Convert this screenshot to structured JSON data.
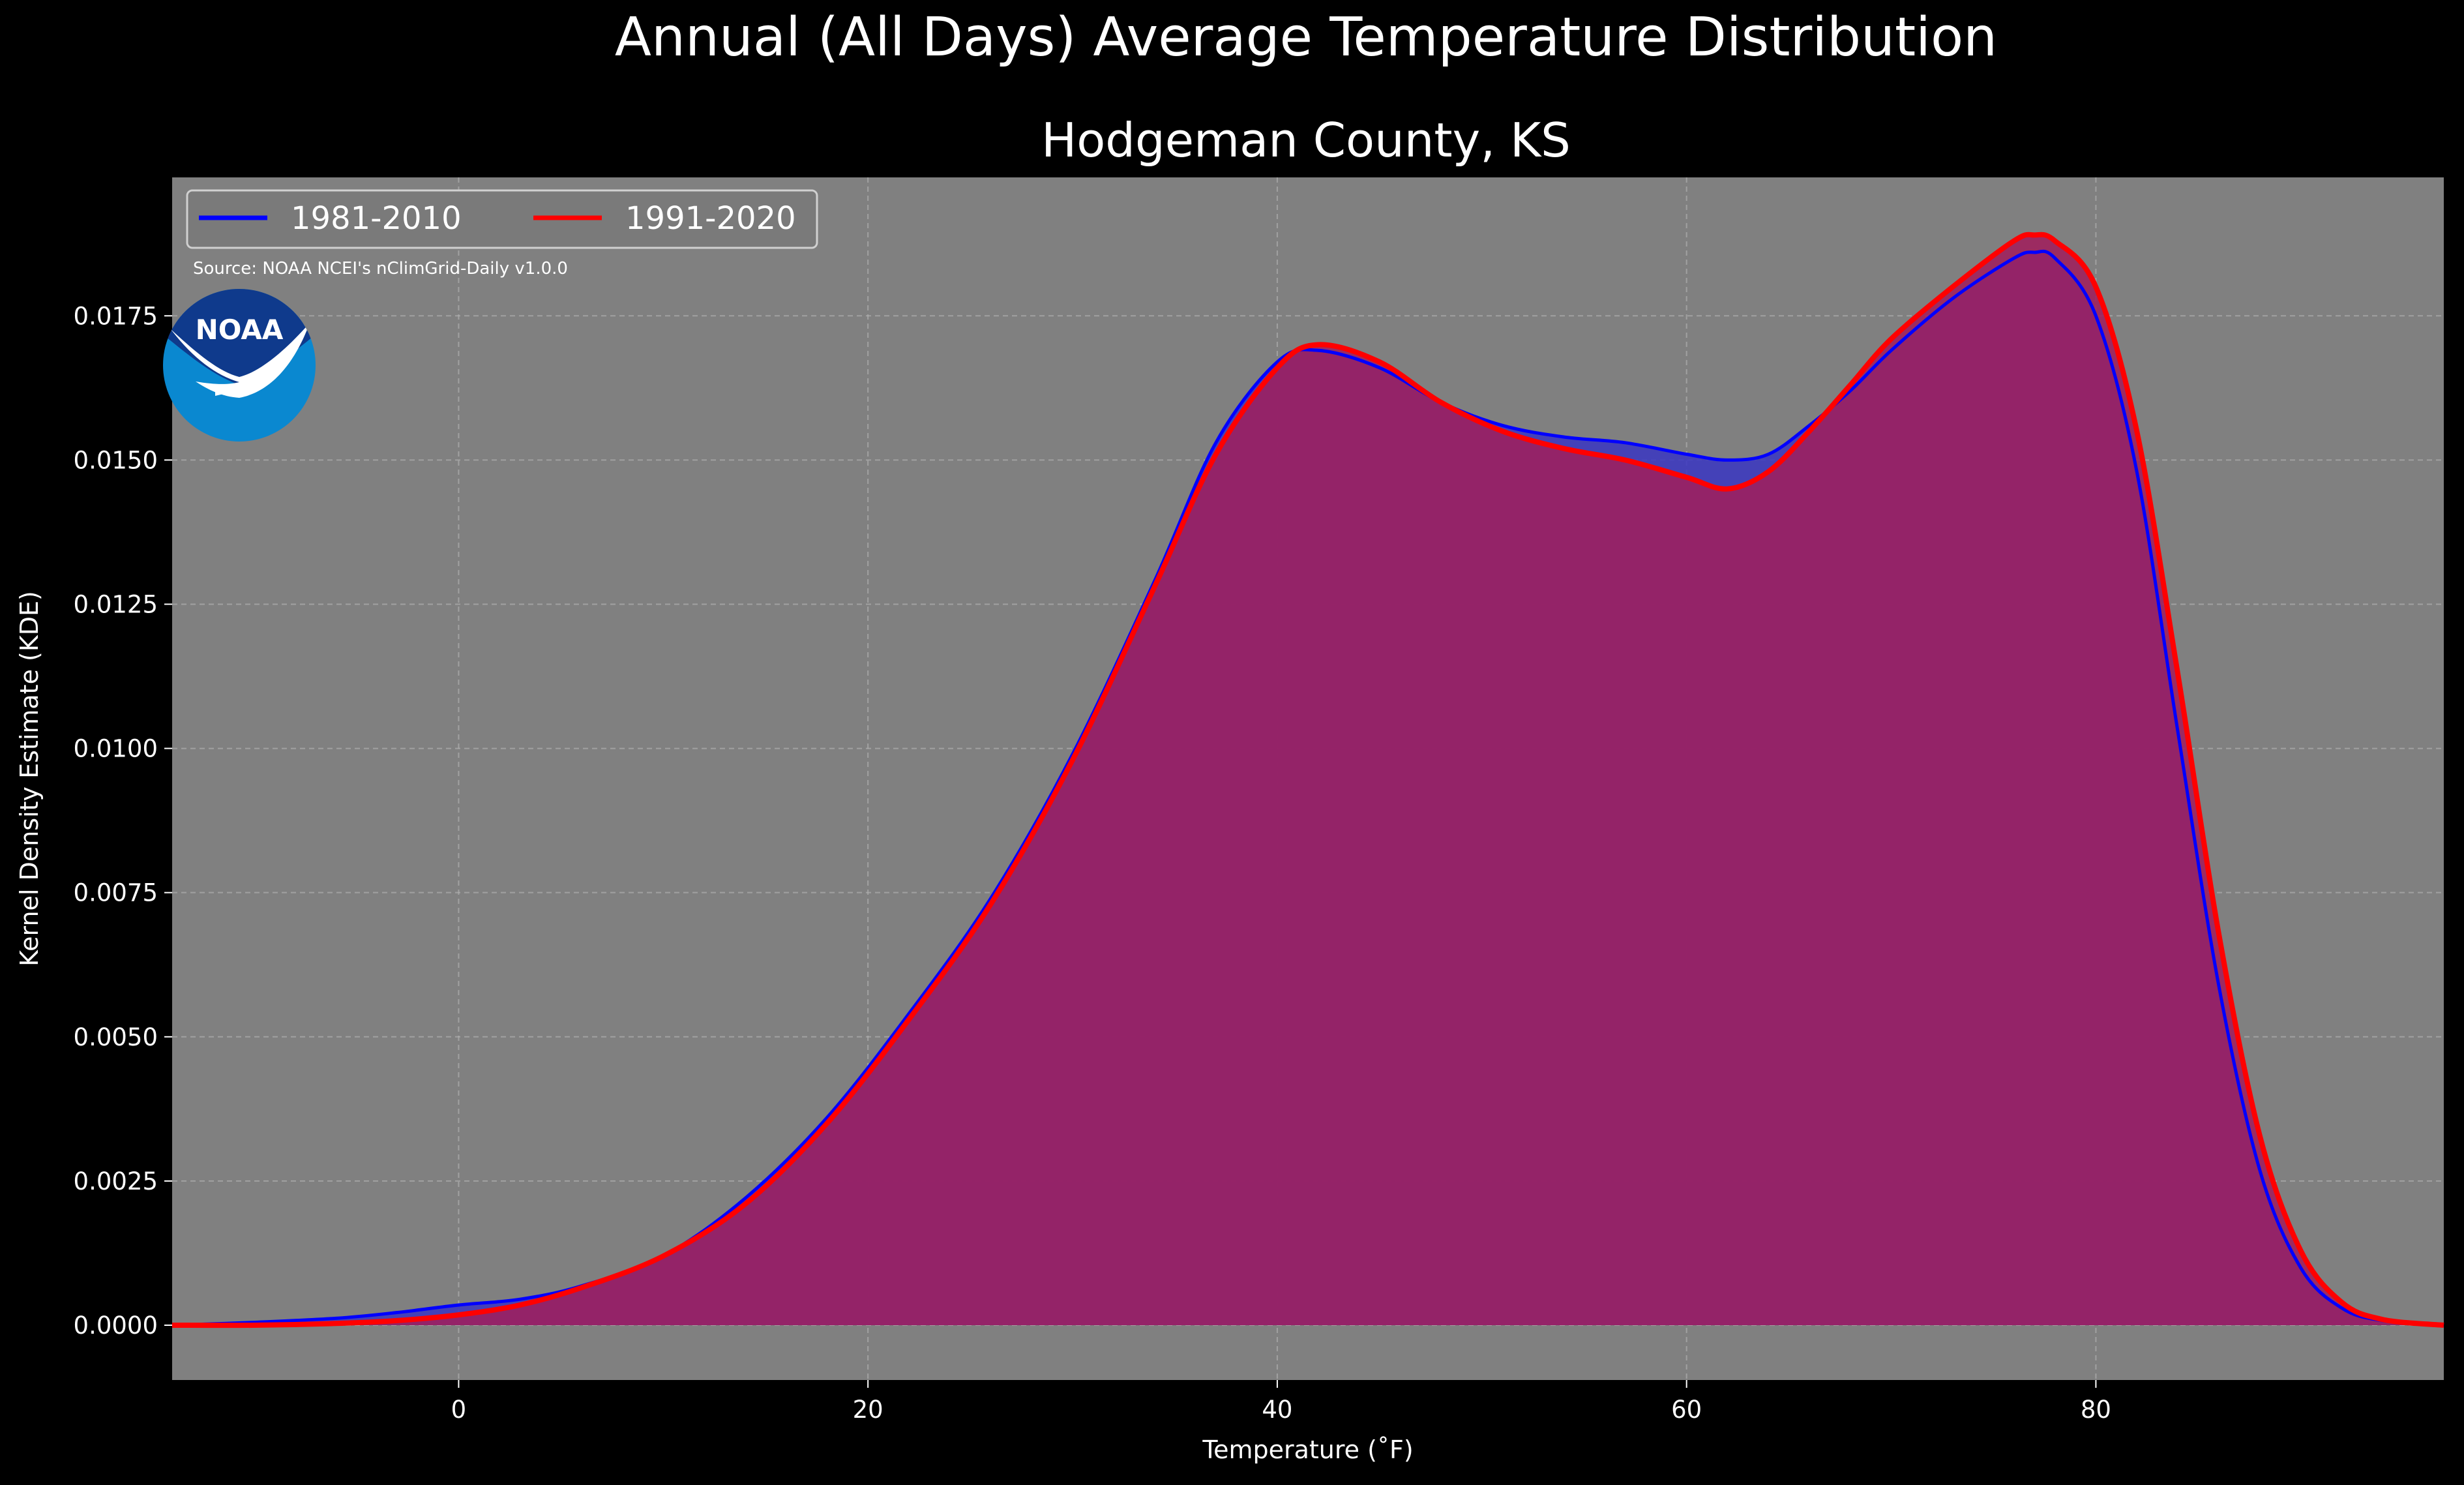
{
  "chart_data": {
    "type": "area",
    "title": "Annual (All Days) Average Temperature Distribution",
    "subtitle": "Hodgeman County, KS",
    "xlabel": "Temperature (˚F)",
    "ylabel": "Kernel Density Estimate (KDE)",
    "xlim": [
      -14,
      97
    ],
    "ylim": [
      -0.00095,
      0.0199
    ],
    "xticks": [
      0,
      20,
      40,
      60,
      80
    ],
    "yticks": [
      0.0,
      0.0025,
      0.005,
      0.0075,
      0.01,
      0.0125,
      0.015,
      0.0175
    ],
    "ytick_labels": [
      "0.0000",
      "0.0025",
      "0.0050",
      "0.0075",
      "0.0100",
      "0.0125",
      "0.0150",
      "0.0175"
    ],
    "grid": true,
    "legend_position": "top-left",
    "source_note": "Source: NOAA NCEI's nClimGrid-Daily v1.0.0",
    "logo_text": "NOAA",
    "colors": {
      "background": "#000000",
      "plot_background": "#808080",
      "grid": "#b0b0b0",
      "series_1": "#0000ff",
      "series_2": "#ff0000",
      "fill_1": "#3a36c2",
      "fill_2": "#9f1f5c",
      "logo_outer": "#0a88d0",
      "logo_inner": "#0f3a8c"
    },
    "series": [
      {
        "name": "1981-2010",
        "color": "#0000ff",
        "x": [
          -14,
          -10,
          -6,
          -3,
          0,
          3,
          6,
          10,
          14,
          18,
          22,
          26,
          30,
          34,
          37,
          40,
          42,
          45,
          48,
          51,
          54,
          57,
          60,
          62,
          64,
          66,
          68,
          70,
          73,
          76,
          77,
          78,
          80,
          82,
          84,
          86,
          88,
          90,
          92,
          94,
          97
        ],
        "y": [
          0.0,
          5e-05,
          0.00012,
          0.00022,
          0.00035,
          0.00045,
          0.00068,
          0.0012,
          0.0022,
          0.0036,
          0.0054,
          0.0074,
          0.0099,
          0.0129,
          0.0153,
          0.0167,
          0.0169,
          0.0166,
          0.016,
          0.0156,
          0.0154,
          0.0153,
          0.0151,
          0.015,
          0.0151,
          0.0156,
          0.0162,
          0.0169,
          0.0178,
          0.0185,
          0.0186,
          0.0185,
          0.0175,
          0.0148,
          0.0103,
          0.0059,
          0.0027,
          0.001,
          0.0003,
          8e-05,
          0.0
        ]
      },
      {
        "name": "1991-2020",
        "color": "#ff0000",
        "x": [
          -14,
          -10,
          -6,
          -3,
          0,
          3,
          6,
          10,
          14,
          18,
          22,
          26,
          30,
          34,
          37,
          40,
          42,
          45,
          48,
          51,
          54,
          57,
          60,
          62,
          64,
          66,
          68,
          70,
          73,
          76,
          77,
          78,
          80,
          82,
          84,
          86,
          88,
          90,
          92,
          94,
          97
        ],
        "y": [
          0.0,
          0.0,
          3e-05,
          8e-05,
          0.00018,
          0.00035,
          0.00065,
          0.0012,
          0.0021,
          0.0035,
          0.0053,
          0.0073,
          0.0098,
          0.0128,
          0.0151,
          0.0166,
          0.017,
          0.0167,
          0.016,
          0.0155,
          0.0152,
          0.015,
          0.0147,
          0.0145,
          0.0148,
          0.0155,
          0.0163,
          0.0171,
          0.018,
          0.0188,
          0.0189,
          0.0188,
          0.018,
          0.0155,
          0.0113,
          0.0068,
          0.0033,
          0.0013,
          0.0004,
          0.0001,
          0.0
        ]
      }
    ]
  }
}
